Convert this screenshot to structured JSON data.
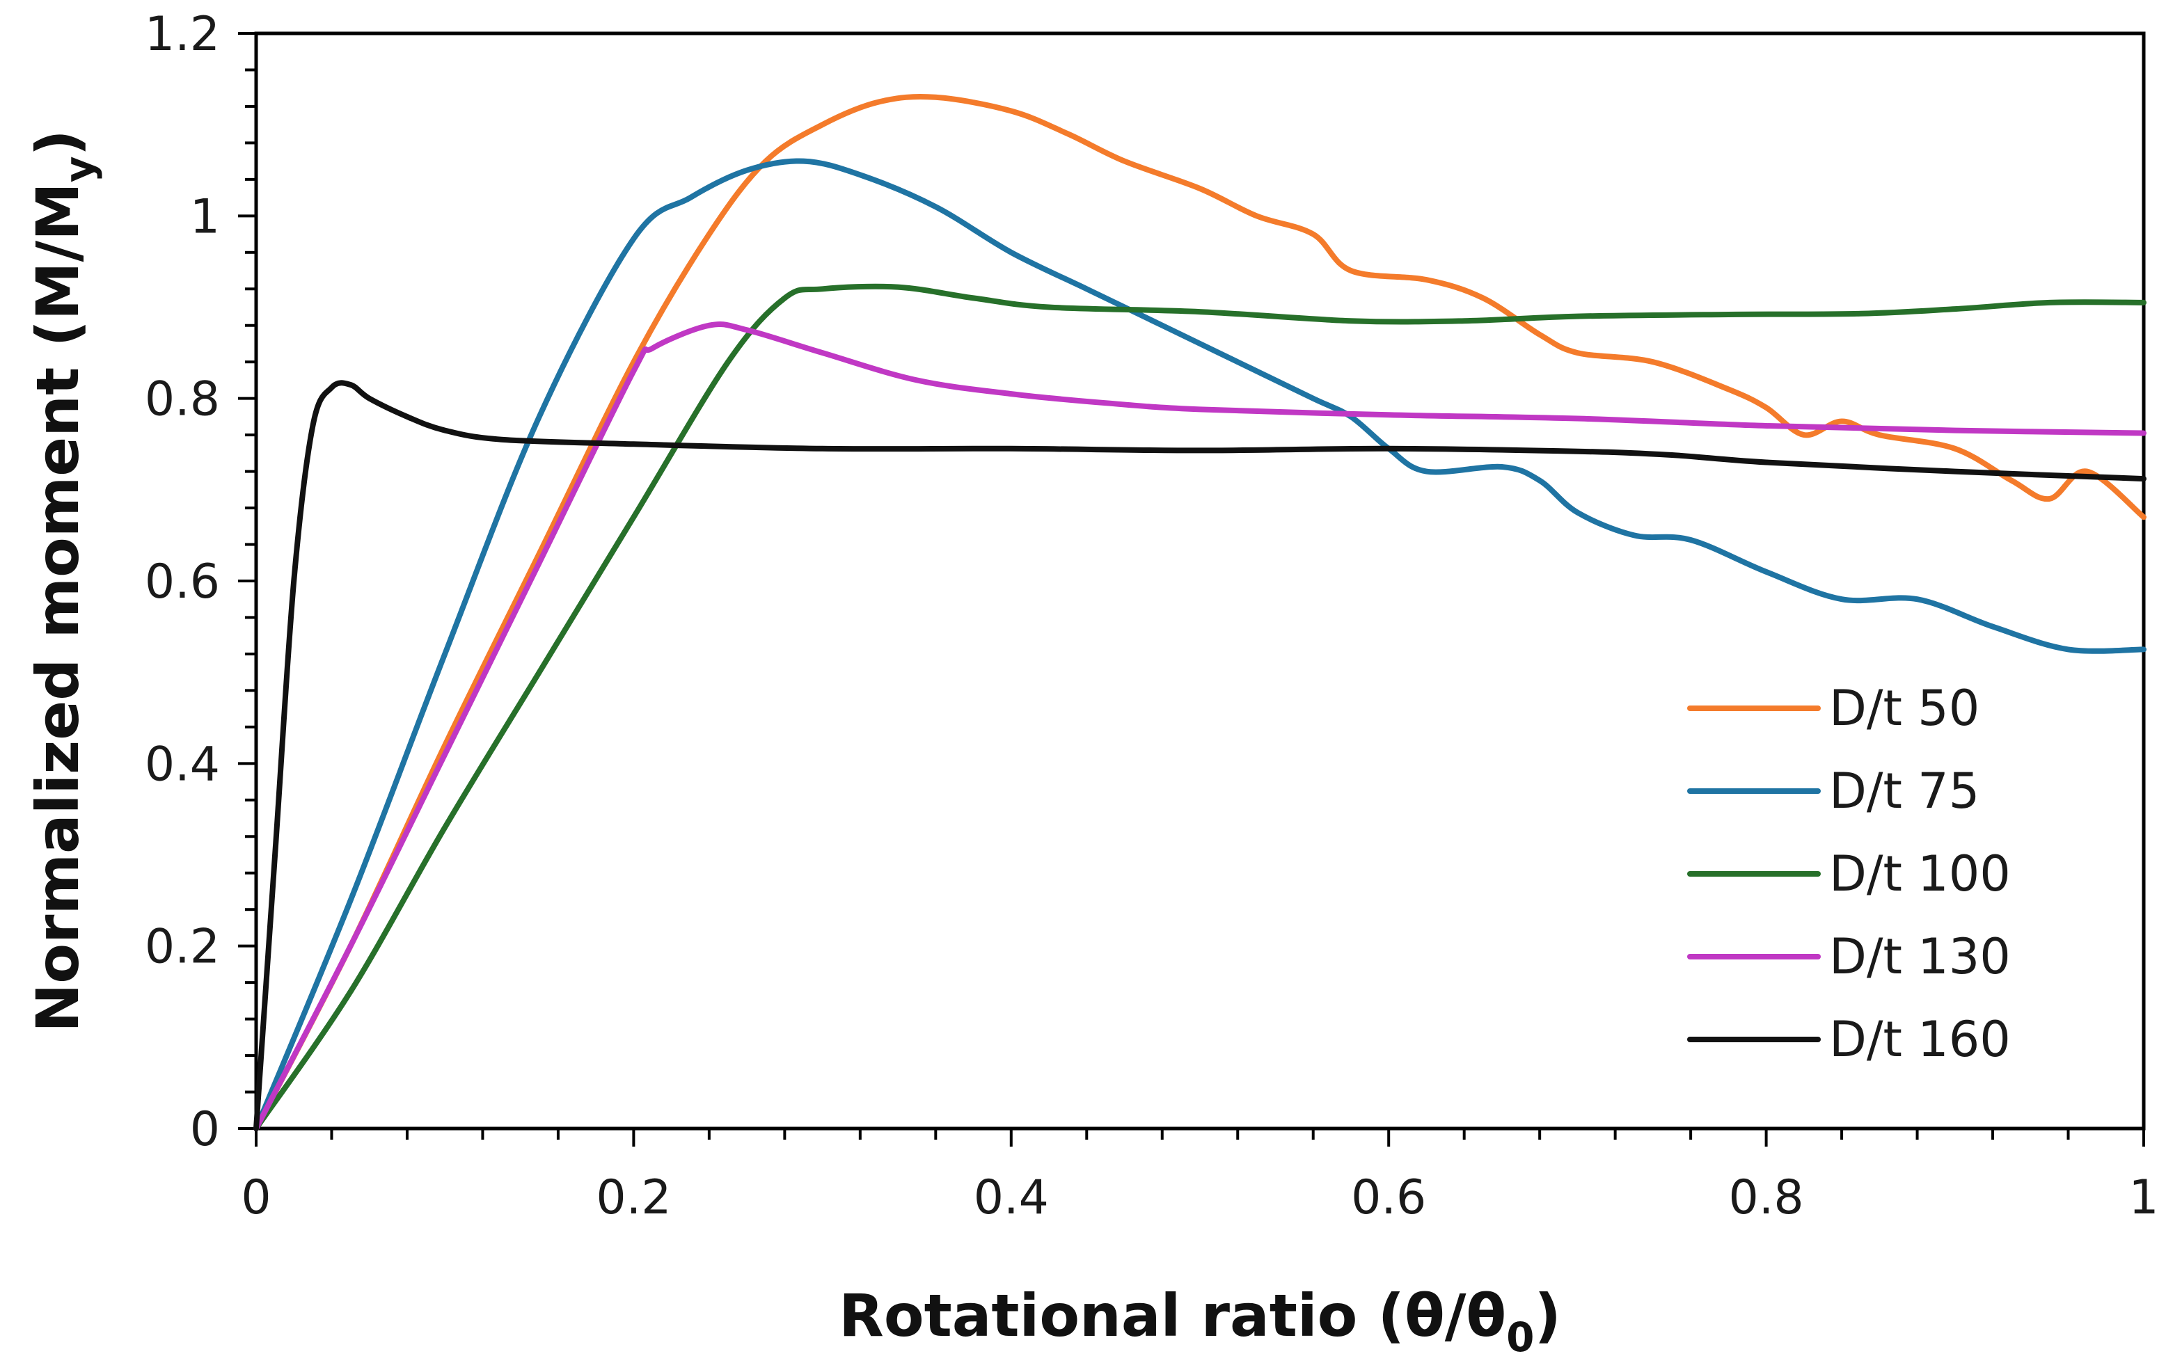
{
  "chart_data": {
    "type": "line",
    "title": "",
    "xlabel": "Rotational ratio (θ/θ",
    "xlabel_sub": "0",
    "xlabel_end": ")",
    "ylabel": "Normalized moment  (M/M",
    "ylabel_sub": "y",
    "ylabel_end": ")",
    "xlim": [
      0,
      1
    ],
    "ylim": [
      0,
      1.2
    ],
    "x_ticks": [
      0,
      0.2,
      0.4,
      0.6,
      0.8,
      1
    ],
    "x_tick_labels": [
      "0",
      "0.2",
      "0.4",
      "0.6",
      "0.8",
      "1"
    ],
    "y_ticks": [
      0,
      0.2,
      0.4,
      0.6,
      0.8,
      1,
      1.2
    ],
    "y_tick_labels": [
      "0",
      "0.2",
      "0.4",
      "0.6",
      "0.8",
      "1",
      "1.2"
    ],
    "grid": false,
    "legend_position": "bottom-right",
    "series": [
      {
        "name": "D/t  50",
        "color": "#f47b2b",
        "points": [
          [
            0,
            0
          ],
          [
            0.05,
            0.2
          ],
          [
            0.1,
            0.42
          ],
          [
            0.15,
            0.63
          ],
          [
            0.2,
            0.84
          ],
          [
            0.24,
            0.98
          ],
          [
            0.27,
            1.06
          ],
          [
            0.3,
            1.1
          ],
          [
            0.33,
            1.125
          ],
          [
            0.36,
            1.13
          ],
          [
            0.4,
            1.115
          ],
          [
            0.43,
            1.09
          ],
          [
            0.46,
            1.06
          ],
          [
            0.5,
            1.03
          ],
          [
            0.53,
            1.0
          ],
          [
            0.56,
            0.98
          ],
          [
            0.58,
            0.94
          ],
          [
            0.62,
            0.93
          ],
          [
            0.65,
            0.91
          ],
          [
            0.68,
            0.87
          ],
          [
            0.7,
            0.85
          ],
          [
            0.74,
            0.84
          ],
          [
            0.78,
            0.81
          ],
          [
            0.8,
            0.79
          ],
          [
            0.82,
            0.76
          ],
          [
            0.84,
            0.775
          ],
          [
            0.86,
            0.76
          ],
          [
            0.9,
            0.745
          ],
          [
            0.93,
            0.71
          ],
          [
            0.95,
            0.69
          ],
          [
            0.97,
            0.72
          ],
          [
            1.0,
            0.67
          ]
        ]
      },
      {
        "name": "D/t  75",
        "color": "#1f74a3",
        "points": [
          [
            0,
            0
          ],
          [
            0.05,
            0.25
          ],
          [
            0.1,
            0.52
          ],
          [
            0.15,
            0.78
          ],
          [
            0.2,
            0.975
          ],
          [
            0.23,
            1.02
          ],
          [
            0.26,
            1.05
          ],
          [
            0.29,
            1.06
          ],
          [
            0.32,
            1.045
          ],
          [
            0.36,
            1.01
          ],
          [
            0.4,
            0.96
          ],
          [
            0.44,
            0.92
          ],
          [
            0.48,
            0.88
          ],
          [
            0.52,
            0.84
          ],
          [
            0.56,
            0.8
          ],
          [
            0.58,
            0.78
          ],
          [
            0.6,
            0.745
          ],
          [
            0.62,
            0.72
          ],
          [
            0.66,
            0.725
          ],
          [
            0.68,
            0.71
          ],
          [
            0.7,
            0.675
          ],
          [
            0.73,
            0.65
          ],
          [
            0.76,
            0.645
          ],
          [
            0.8,
            0.61
          ],
          [
            0.84,
            0.58
          ],
          [
            0.88,
            0.58
          ],
          [
            0.92,
            0.55
          ],
          [
            0.96,
            0.525
          ],
          [
            1.0,
            0.525
          ]
        ]
      },
      {
        "name": "D/t  100",
        "color": "#27702a",
        "points": [
          [
            0,
            0
          ],
          [
            0.05,
            0.15
          ],
          [
            0.1,
            0.33
          ],
          [
            0.15,
            0.5
          ],
          [
            0.2,
            0.67
          ],
          [
            0.25,
            0.84
          ],
          [
            0.28,
            0.91
          ],
          [
            0.3,
            0.92
          ],
          [
            0.34,
            0.922
          ],
          [
            0.38,
            0.91
          ],
          [
            0.42,
            0.9
          ],
          [
            0.5,
            0.895
          ],
          [
            0.58,
            0.885
          ],
          [
            0.64,
            0.885
          ],
          [
            0.7,
            0.89
          ],
          [
            0.78,
            0.892
          ],
          [
            0.85,
            0.893
          ],
          [
            0.9,
            0.898
          ],
          [
            0.95,
            0.905
          ],
          [
            1.0,
            0.905
          ]
        ]
      },
      {
        "name": "D/t  130",
        "color": "#c038c4",
        "points": [
          [
            0,
            0
          ],
          [
            0.05,
            0.2
          ],
          [
            0.1,
            0.41
          ],
          [
            0.15,
            0.62
          ],
          [
            0.2,
            0.83
          ],
          [
            0.21,
            0.855
          ],
          [
            0.24,
            0.88
          ],
          [
            0.26,
            0.875
          ],
          [
            0.3,
            0.85
          ],
          [
            0.35,
            0.82
          ],
          [
            0.4,
            0.805
          ],
          [
            0.45,
            0.795
          ],
          [
            0.5,
            0.788
          ],
          [
            0.6,
            0.782
          ],
          [
            0.7,
            0.778
          ],
          [
            0.8,
            0.77
          ],
          [
            0.9,
            0.765
          ],
          [
            1.0,
            0.762
          ]
        ]
      },
      {
        "name": "D/t  160",
        "color": "#111111",
        "points": [
          [
            0,
            0
          ],
          [
            0.01,
            0.3
          ],
          [
            0.02,
            0.6
          ],
          [
            0.03,
            0.77
          ],
          [
            0.04,
            0.812
          ],
          [
            0.05,
            0.815
          ],
          [
            0.06,
            0.8
          ],
          [
            0.08,
            0.78
          ],
          [
            0.1,
            0.765
          ],
          [
            0.13,
            0.755
          ],
          [
            0.2,
            0.75
          ],
          [
            0.3,
            0.745
          ],
          [
            0.4,
            0.745
          ],
          [
            0.5,
            0.743
          ],
          [
            0.6,
            0.745
          ],
          [
            0.7,
            0.742
          ],
          [
            0.75,
            0.738
          ],
          [
            0.8,
            0.73
          ],
          [
            0.9,
            0.72
          ],
          [
            1.0,
            0.712
          ]
        ]
      }
    ]
  }
}
